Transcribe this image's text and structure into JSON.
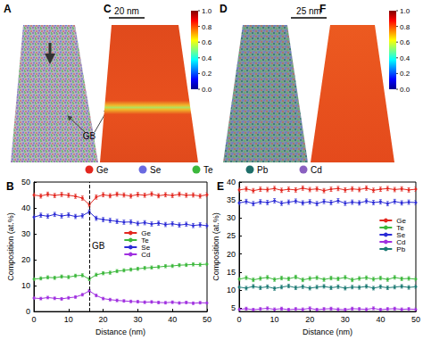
{
  "reconstructions": [
    {
      "label": "A",
      "scale_bar": "20 nm",
      "annotation": "GB"
    },
    {
      "label": "C",
      "colorbar": {
        "range": [
          0,
          1
        ],
        "ticks": [
          {
            "value": 0,
            "label": "0.0"
          },
          {
            "value": 0.2,
            "label": "0.2"
          },
          {
            "value": 0.4,
            "label": "0.4"
          },
          {
            "value": 0.6,
            "label": "0.6"
          },
          {
            "value": 0.8,
            "label": "0.8"
          },
          {
            "value": 1,
            "label": "1.0"
          }
        ]
      }
    },
    {
      "label": "D",
      "scale_bar": "25 nm"
    },
    {
      "label": "F",
      "colorbar": {
        "range": [
          0,
          1
        ],
        "ticks": [
          {
            "value": 0,
            "label": "0.0"
          },
          {
            "value": 0.2,
            "label": "0.2"
          },
          {
            "value": 0.4,
            "label": "0.4"
          },
          {
            "value": 0.6,
            "label": "0.6"
          },
          {
            "value": 0.8,
            "label": "0.8"
          },
          {
            "value": 1,
            "label": "1.0"
          }
        ]
      }
    }
  ],
  "element_legend": [
    {
      "name": "Ge",
      "color": "#e3271f"
    },
    {
      "name": "Se",
      "color": "#6a6ae0"
    },
    {
      "name": "Te",
      "color": "#3cb83c"
    },
    {
      "name": "Pb",
      "color": "#1f6f6a"
    },
    {
      "name": "Cd",
      "color": "#8a60c0"
    }
  ],
  "chart_data": [
    {
      "type": "line",
      "panel": "B",
      "x_label": "Distance (nm)",
      "y_label": "Composition (at.%)",
      "x": [
        0,
        2,
        4,
        6,
        8,
        10,
        12,
        14,
        16,
        18,
        20,
        22,
        24,
        26,
        28,
        30,
        32,
        34,
        36,
        38,
        40,
        42,
        44,
        46,
        48,
        50
      ],
      "xlim": [
        0,
        50
      ],
      "xticks": [
        0,
        10,
        20,
        30,
        40,
        50
      ],
      "ylim": [
        0,
        50
      ],
      "yticks": [
        0,
        10,
        20,
        30,
        40,
        50
      ],
      "grid": false,
      "legend": "right",
      "marker": "circle",
      "series": [
        {
          "name": "Ge",
          "color": "#e3271f",
          "error": 0.8,
          "values": [
            45.0,
            44.6,
            45.3,
            44.8,
            45.2,
            44.9,
            44.5,
            43.8,
            41.2,
            44.2,
            45.1,
            44.7,
            45.3,
            45.0,
            44.6,
            45.2,
            44.9,
            45.4,
            44.7,
            45.1,
            44.8,
            45.3,
            44.9,
            45.0,
            44.6,
            45.1
          ]
        },
        {
          "name": "Te",
          "color": "#3cb83c",
          "error": 0.6,
          "values": [
            12.5,
            12.8,
            13.2,
            13.0,
            13.5,
            13.3,
            13.8,
            14.0,
            12.5,
            14.2,
            14.8,
            15.0,
            15.6,
            15.9,
            16.2,
            16.5,
            16.8,
            17.0,
            17.2,
            17.5,
            17.6,
            17.9,
            18.0,
            18.2,
            18.1,
            18.3
          ]
        },
        {
          "name": "Se",
          "color": "#2b2bd6",
          "error": 0.8,
          "values": [
            36.5,
            37.2,
            36.8,
            37.5,
            36.9,
            37.3,
            36.7,
            37.0,
            38.5,
            36.0,
            35.5,
            35.2,
            34.8,
            34.5,
            34.6,
            34.0,
            34.3,
            33.8,
            34.1,
            33.6,
            33.9,
            33.4,
            33.7,
            33.2,
            33.5,
            33.1
          ]
        },
        {
          "name": "Cd",
          "color": "#a030e0",
          "error": 0.5,
          "values": [
            5.2,
            5.0,
            5.4,
            5.1,
            4.9,
            5.3,
            5.6,
            6.5,
            8.0,
            6.2,
            5.0,
            4.6,
            4.3,
            4.1,
            3.9,
            3.8,
            3.6,
            3.7,
            3.5,
            3.4,
            3.6,
            3.3,
            3.5,
            3.2,
            3.4,
            3.3
          ]
        }
      ],
      "annotations": [
        {
          "x": 16,
          "text": "GB",
          "line_style": "dashed"
        }
      ]
    },
    {
      "type": "line",
      "panel": "E",
      "x_label": "Distance (nm)",
      "y_label": "Composition (at.%)",
      "x": [
        0,
        2,
        4,
        6,
        8,
        10,
        12,
        14,
        16,
        18,
        20,
        22,
        24,
        26,
        28,
        30,
        32,
        34,
        36,
        38,
        40,
        42,
        44,
        46,
        48,
        50
      ],
      "xlim": [
        0,
        50
      ],
      "xticks": [
        0,
        10,
        20,
        30,
        40,
        50
      ],
      "ylim": [
        4,
        40
      ],
      "yticks": [
        5,
        10,
        15,
        20,
        25,
        30,
        35,
        40
      ],
      "grid": false,
      "legend": "right",
      "marker": "circle",
      "series": [
        {
          "name": "Ge",
          "color": "#e3271f",
          "error": 0.6,
          "values": [
            37.8,
            38.1,
            37.6,
            38.0,
            37.9,
            38.2,
            37.7,
            38.0,
            37.8,
            38.3,
            37.9,
            38.1,
            37.6,
            38.0,
            38.2,
            37.8,
            38.1,
            37.9,
            38.3,
            37.7,
            38.0,
            38.2,
            37.9,
            38.1,
            37.8,
            38.0
          ]
        },
        {
          "name": "Te",
          "color": "#3cb83c",
          "error": 0.5,
          "values": [
            13.0,
            13.4,
            12.8,
            13.2,
            13.5,
            12.9,
            13.3,
            13.1,
            13.6,
            12.8,
            13.2,
            13.4,
            12.9,
            13.3,
            13.1,
            13.5,
            12.8,
            13.2,
            13.4,
            13.0,
            13.3,
            12.9,
            13.5,
            13.1,
            13.2,
            13.0
          ]
        },
        {
          "name": "Se",
          "color": "#2b2bd6",
          "error": 0.6,
          "values": [
            34.2,
            34.6,
            34.0,
            34.5,
            34.3,
            34.8,
            34.1,
            34.4,
            34.7,
            34.2,
            34.5,
            34.0,
            34.6,
            34.3,
            34.8,
            34.1,
            34.4,
            34.2,
            34.7,
            34.3,
            34.5,
            34.0,
            34.6,
            34.2,
            34.4,
            34.3
          ]
        },
        {
          "name": "Cd",
          "color": "#a030e0",
          "error": 0.4,
          "values": [
            4.6,
            4.8,
            4.5,
            4.7,
            4.9,
            4.6,
            4.8,
            4.5,
            4.7,
            4.6,
            4.9,
            4.5,
            4.7,
            4.8,
            4.6,
            4.5,
            4.8,
            4.7,
            4.6,
            4.9,
            4.5,
            4.7,
            4.8,
            4.6,
            4.7,
            4.6
          ]
        },
        {
          "name": "Pb",
          "color": "#1c7a74",
          "error": 0.5,
          "values": [
            10.8,
            10.5,
            11.0,
            10.6,
            10.9,
            10.4,
            10.8,
            11.1,
            10.6,
            10.9,
            10.5,
            10.8,
            11.0,
            10.6,
            10.9,
            10.5,
            10.8,
            10.7,
            11.0,
            10.5,
            10.9,
            10.6,
            10.8,
            11.0,
            10.7,
            10.9
          ]
        }
      ]
    }
  ]
}
